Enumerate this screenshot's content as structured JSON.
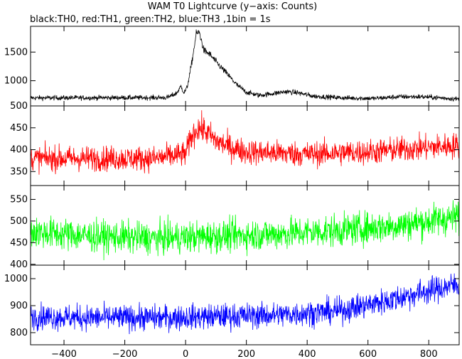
{
  "chart_data": {
    "type": "line",
    "title": "WAM T0 Lightcurve (y−axis: Counts)",
    "subtitle": "black:TH0, red:TH1, green:TH2, blue:TH3 ,1bin = 1s",
    "xlim": [
      -510,
      900
    ],
    "x_ticks": [
      -400,
      -200,
      0,
      200,
      400,
      600,
      800
    ],
    "x_tick_labels": [
      "−400",
      "−200",
      "0",
      "200",
      "400",
      "600",
      "800"
    ],
    "grid": false,
    "panels": [
      {
        "series_color": "#000000",
        "ylim": [
          560,
          1950
        ],
        "y_ticks": [
          1000,
          1500
        ],
        "y_tick_labels": [
          "1000",
          "1500"
        ],
        "noise": 30,
        "points": [
          [
            -510,
            700
          ],
          [
            -60,
            705
          ],
          [
            -30,
            780
          ],
          [
            -15,
            900
          ],
          [
            -5,
            790
          ],
          [
            5,
            880
          ],
          [
            20,
            1300
          ],
          [
            35,
            1820
          ],
          [
            45,
            1850
          ],
          [
            60,
            1530
          ],
          [
            80,
            1460
          ],
          [
            100,
            1330
          ],
          [
            140,
            1100
          ],
          [
            170,
            920
          ],
          [
            200,
            800
          ],
          [
            240,
            745
          ],
          [
            280,
            770
          ],
          [
            330,
            810
          ],
          [
            370,
            790
          ],
          [
            420,
            730
          ],
          [
            520,
            700
          ],
          [
            620,
            690
          ],
          [
            700,
            720
          ],
          [
            780,
            720
          ],
          [
            900,
            680
          ]
        ]
      },
      {
        "series_color": "#ff0000",
        "ylim": [
          318,
          500
        ],
        "y_ticks": [
          350,
          400,
          450,
          500
        ],
        "y_tick_labels": [
          "350",
          "400",
          "450",
          "500"
        ],
        "noise": 20,
        "points": [
          [
            -510,
            380
          ],
          [
            -100,
            380
          ],
          [
            0,
            390
          ],
          [
            20,
            430
          ],
          [
            40,
            450
          ],
          [
            60,
            445
          ],
          [
            100,
            420
          ],
          [
            150,
            405
          ],
          [
            200,
            395
          ],
          [
            400,
            390
          ],
          [
            600,
            395
          ],
          [
            800,
            405
          ],
          [
            900,
            410
          ]
        ]
      },
      {
        "series_color": "#00ff00",
        "ylim": [
          398,
          582
        ],
        "y_ticks": [
          400,
          450,
          500,
          550
        ],
        "y_tick_labels": [
          "400",
          "450",
          "500",
          "550"
        ],
        "noise": 26,
        "points": [
          [
            -510,
            475
          ],
          [
            -300,
            465
          ],
          [
            -100,
            460
          ],
          [
            100,
            465
          ],
          [
            300,
            470
          ],
          [
            500,
            478
          ],
          [
            700,
            490
          ],
          [
            900,
            510
          ]
        ]
      },
      {
        "series_color": "#0000ff",
        "ylim": [
          755,
          1050
        ],
        "y_ticks": [
          800,
          900,
          1000
        ],
        "y_tick_labels": [
          "800",
          "900",
          "1000"
        ],
        "noise": 33,
        "points": [
          [
            -510,
            860
          ],
          [
            -300,
            855
          ],
          [
            -100,
            855
          ],
          [
            100,
            860
          ],
          [
            300,
            865
          ],
          [
            500,
            880
          ],
          [
            650,
            915
          ],
          [
            800,
            955
          ],
          [
            900,
            980
          ]
        ]
      }
    ]
  }
}
